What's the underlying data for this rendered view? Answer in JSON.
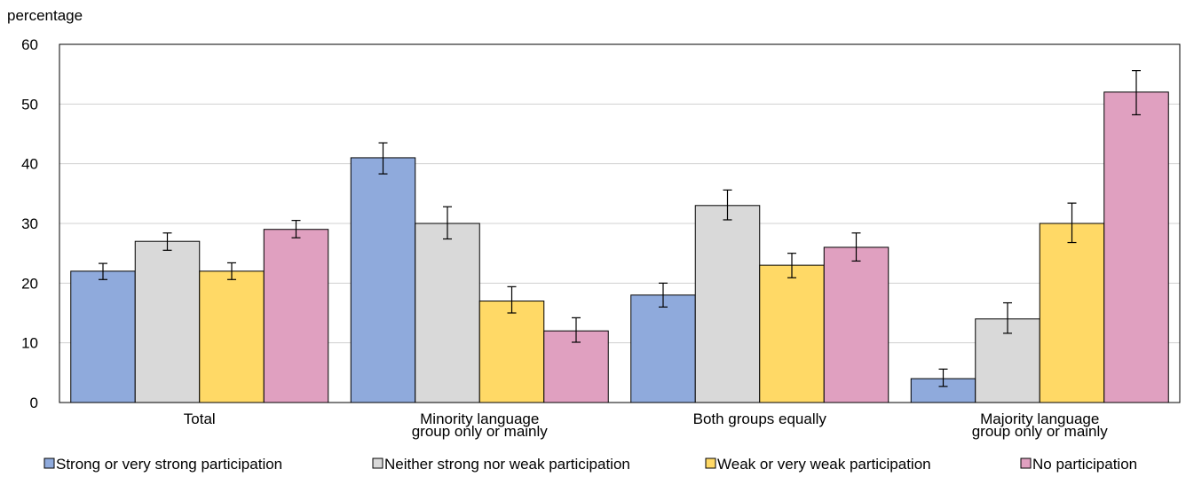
{
  "chart_data": {
    "type": "bar",
    "ylabel": "percentage",
    "ylim": [
      0,
      60
    ],
    "yticks": [
      0,
      10,
      20,
      30,
      40,
      50,
      60
    ],
    "grid": true,
    "legend_position": "bottom",
    "error_bars": true,
    "categories": [
      [
        "Total"
      ],
      [
        "Minority language",
        "group only or mainly"
      ],
      [
        "Both groups equally"
      ],
      [
        "Majority language",
        "group only or mainly"
      ]
    ],
    "series": [
      {
        "name": "Strong or very strong participation",
        "color": "#8FAADC",
        "values": [
          22,
          41,
          18,
          4
        ],
        "err_low": [
          20.6,
          38.3,
          16.0,
          2.7
        ],
        "err_high": [
          23.3,
          43.5,
          20.0,
          5.6
        ]
      },
      {
        "name": "Neither strong nor weak participation",
        "color": "#D9D9D9",
        "values": [
          27,
          30,
          33,
          14
        ],
        "err_low": [
          25.5,
          27.4,
          30.6,
          11.6
        ],
        "err_high": [
          28.4,
          32.8,
          35.6,
          16.7
        ]
      },
      {
        "name": "Weak or very weak participation",
        "color": "#FFD966",
        "values": [
          22,
          17,
          23,
          30
        ],
        "err_low": [
          20.6,
          15.0,
          20.9,
          26.8
        ],
        "err_high": [
          23.4,
          19.4,
          25.0,
          33.4
        ]
      },
      {
        "name": "No participation",
        "color": "#E0A0C0",
        "values": [
          29,
          12,
          26,
          52
        ],
        "err_low": [
          27.6,
          10.1,
          23.7,
          48.2
        ],
        "err_high": [
          30.5,
          14.2,
          28.4,
          55.6
        ]
      }
    ]
  }
}
